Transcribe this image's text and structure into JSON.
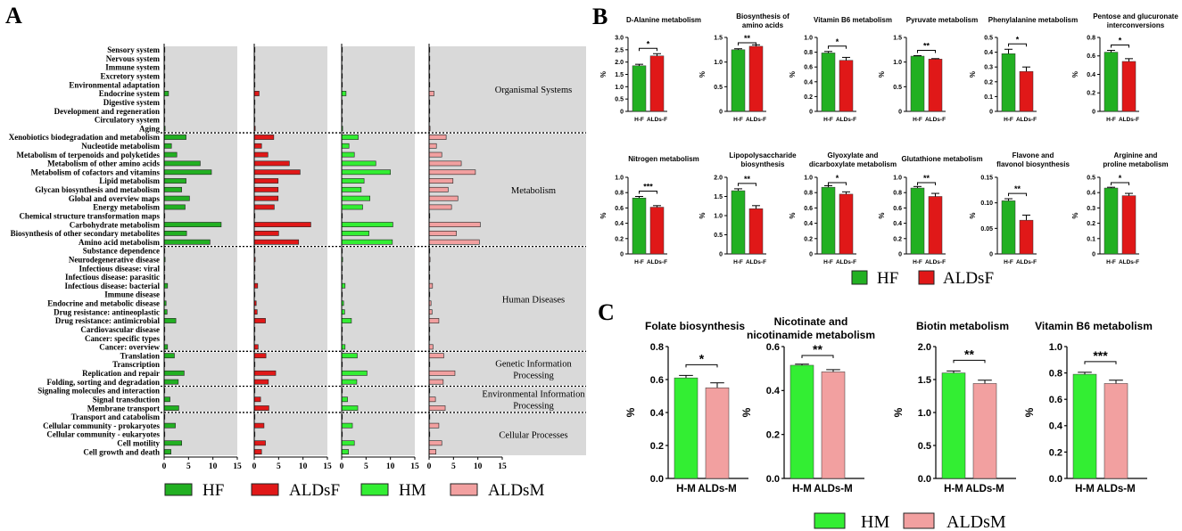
{
  "colors": {
    "HF": "#22b022",
    "ALDsF": "#e01818",
    "HM": "#33ee33",
    "ALDsM": "#f2a0a0",
    "panel_bg": "#d9d9d9",
    "axis": "#000000"
  },
  "panel_labels": {
    "A": "A",
    "B": "B",
    "C": "C"
  },
  "chart_data": [
    {
      "id": "A",
      "type": "bar",
      "orientation": "horizontal",
      "xlim": [
        0,
        15
      ],
      "xticks": [
        "0",
        "5",
        "10",
        "15"
      ],
      "categories": [
        "Sensory system",
        "Nervous system",
        "Immune system",
        "Excretory system",
        "Environmental adaptation",
        "Endocrine system",
        "Digestive system",
        "Development and regeneration",
        "Circulatory system",
        "Aging",
        "Xenobiotics biodegradation and metabolism",
        "Nucleotide metabolism",
        "Metabolism of terpenoids and polyketides",
        "Metabolism of other amino acids",
        "Metabolism of cofactors and vitamins",
        "Lipid metabolism",
        "Glycan biosynthesis and metabolism",
        "Global and overview maps",
        "Energy metabolism",
        "Chemical structure transformation maps",
        "Carbohydrate metabolism",
        "Biosynthesis of other secondary metabolites",
        "Amino acid metabolism",
        "Substance dependence",
        "Neurodegenerative disease",
        "Infectious disease: viral",
        "Infectious disease: parasitic",
        "Infectious disease: bacterial",
        "Immune disease",
        "Endocrine and metabolic disease",
        "Drug resistance: antineoplastic",
        "Drug resistance: antimicrobial",
        "Cardiovascular disease",
        "Cancer: specific types",
        "Cancer: overview",
        "Translation",
        "Transcription",
        "Replication and repair",
        "Folding, sorting and degradation",
        "Signaling molecules and interaction",
        "Signal transduction",
        "Membrane transport",
        "Transport and catabolism",
        "Cellular community - prokaryotes",
        "Cellular community - eukaryotes",
        "Cell motility",
        "Cell growth and death"
      ],
      "groups": [
        {
          "name": "Organismal Systems",
          "start": 0,
          "end": 9
        },
        {
          "name": "Metabolism",
          "start": 10,
          "end": 22
        },
        {
          "name": "Human Diseases",
          "start": 23,
          "end": 34
        },
        {
          "name": "Genetic Information Processing",
          "start": 35,
          "end": 38
        },
        {
          "name": "Environmental Information Processing",
          "start": 39,
          "end": 41
        },
        {
          "name": "Cellular Processes",
          "start": 42,
          "end": 46
        }
      ],
      "series": [
        {
          "name": "HF",
          "values": [
            0.1,
            0.1,
            0.1,
            0.1,
            0.05,
            0.9,
            0.1,
            0.1,
            0.1,
            0.2,
            4.5,
            1.5,
            2.6,
            7.4,
            9.7,
            4.5,
            3.6,
            5.2,
            4.3,
            0.1,
            11.7,
            4.6,
            9.4,
            0.1,
            0.2,
            0.1,
            0.1,
            0.7,
            0.1,
            0.4,
            0.6,
            2.4,
            0.1,
            0.1,
            0.7,
            2.1,
            0.1,
            4.1,
            2.9,
            0.1,
            1.2,
            3.0,
            0.1,
            2.3,
            0.1,
            3.6,
            1.4
          ]
        },
        {
          "name": "ALDsF",
          "values": [
            0.1,
            0.1,
            0.1,
            0.1,
            0.05,
            1.0,
            0.1,
            0.1,
            0.1,
            0.2,
            4.0,
            1.5,
            2.8,
            7.2,
            9.4,
            4.9,
            4.9,
            4.9,
            4.1,
            0.1,
            11.6,
            5.0,
            9.1,
            0.1,
            0.2,
            0.1,
            0.1,
            0.7,
            0.1,
            0.4,
            0.6,
            2.3,
            0.1,
            0.1,
            0.8,
            2.4,
            0.1,
            4.4,
            2.9,
            0.1,
            1.3,
            3.0,
            0.1,
            2.0,
            0.1,
            2.3,
            1.5
          ]
        },
        {
          "name": "HM",
          "values": [
            0.1,
            0.1,
            0.1,
            0.1,
            0.05,
            0.9,
            0.1,
            0.1,
            0.1,
            0.2,
            3.4,
            1.5,
            2.6,
            7.0,
            10.0,
            4.6,
            4.0,
            5.8,
            4.3,
            0.1,
            10.5,
            5.6,
            10.4,
            0.1,
            0.2,
            0.1,
            0.1,
            0.7,
            0.1,
            0.4,
            0.6,
            2.0,
            0.1,
            0.1,
            0.7,
            3.2,
            0.1,
            5.2,
            3.1,
            0.1,
            1.2,
            3.3,
            0.1,
            2.2,
            0.1,
            2.6,
            1.4
          ]
        },
        {
          "name": "ALDsM",
          "values": [
            0.1,
            0.1,
            0.1,
            0.1,
            0.05,
            1.0,
            0.1,
            0.1,
            0.1,
            0.2,
            3.5,
            1.5,
            2.6,
            6.6,
            9.5,
            4.9,
            3.9,
            5.9,
            4.6,
            0.1,
            10.5,
            5.6,
            10.3,
            0.1,
            0.2,
            0.1,
            0.1,
            0.7,
            0.1,
            0.4,
            0.6,
            2.0,
            0.1,
            0.1,
            0.8,
            3.0,
            0.1,
            5.3,
            2.9,
            0.1,
            1.3,
            3.3,
            0.1,
            2.0,
            0.1,
            2.6,
            1.4
          ]
        }
      ],
      "legend": [
        "HF",
        "ALDsF",
        "HM",
        "ALDsM"
      ]
    },
    {
      "id": "B",
      "type": "bar",
      "ylabel": "%",
      "categories": [
        "H-F",
        "ALDs-F"
      ],
      "legend": [
        "HF",
        "ALDsF"
      ],
      "subplots": [
        {
          "title": [
            "D-Alanine metabolism"
          ],
          "ylim": [
            0,
            3.0
          ],
          "yticks": [
            "0",
            "0.5",
            "1.0",
            "1.5",
            "2.0",
            "2.5",
            "3.0"
          ],
          "values": [
            1.85,
            2.25
          ],
          "errors": [
            0.06,
            0.09
          ],
          "sig": "*"
        },
        {
          "title": [
            "Biosynthesis of",
            "amino acids"
          ],
          "ylim": [
            0,
            1.5
          ],
          "yticks": [
            "0",
            "0.5",
            "1.0",
            "1.5"
          ],
          "values": [
            1.25,
            1.32
          ],
          "errors": [
            0.02,
            0.03
          ],
          "sig": "**"
        },
        {
          "title": [
            "Vitamin B6 metabolism"
          ],
          "ylim": [
            0,
            1.0
          ],
          "yticks": [
            "0",
            "0.2",
            "0.4",
            "0.6",
            "0.8",
            "1.0"
          ],
          "values": [
            0.79,
            0.69
          ],
          "errors": [
            0.02,
            0.04
          ],
          "sig": "*"
        },
        {
          "title": [
            "Pyruvate metabolism"
          ],
          "ylim": [
            0,
            1.5
          ],
          "yticks": [
            "0",
            "0.5",
            "1.0",
            "1.5"
          ],
          "values": [
            1.12,
            1.06
          ],
          "errors": [
            0.01,
            0.01
          ],
          "sig": "**"
        },
        {
          "title": [
            "Phenylalanine metabolism"
          ],
          "ylim": [
            0,
            0.5
          ],
          "yticks": [
            "0",
            "0.1",
            "0.2",
            "0.3",
            "0.4",
            "0.5"
          ],
          "values": [
            0.39,
            0.27
          ],
          "errors": [
            0.03,
            0.03
          ],
          "sig": "*"
        },
        {
          "title": [
            "Pentose and glucuronate",
            "interconversions"
          ],
          "ylim": [
            0,
            0.8
          ],
          "yticks": [
            "0",
            "0.2",
            "0.4",
            "0.6",
            "0.8"
          ],
          "values": [
            0.64,
            0.54
          ],
          "errors": [
            0.02,
            0.03
          ],
          "sig": "*"
        },
        {
          "title": [
            "Nitrogen metabolism"
          ],
          "ylim": [
            0,
            1.0
          ],
          "yticks": [
            "0",
            "0.2",
            "0.4",
            "0.6",
            "0.8",
            "1.0"
          ],
          "values": [
            0.73,
            0.61
          ],
          "errors": [
            0.02,
            0.02
          ],
          "sig": "***"
        },
        {
          "title": [
            "Lipopolysaccharide",
            "biosynthesis"
          ],
          "ylim": [
            0,
            2.0
          ],
          "yticks": [
            "0",
            "0.5",
            "1.0",
            "1.5",
            "2.0"
          ],
          "values": [
            1.65,
            1.18
          ],
          "errors": [
            0.05,
            0.08
          ],
          "sig": "**"
        },
        {
          "title": [
            "Glyoxylate and",
            "dicarboxylate metabolism"
          ],
          "ylim": [
            0,
            1.0
          ],
          "yticks": [
            "0",
            "0.2",
            "0.4",
            "0.6",
            "0.8",
            "1.0"
          ],
          "values": [
            0.87,
            0.78
          ],
          "errors": [
            0.02,
            0.03
          ],
          "sig": "*"
        },
        {
          "title": [
            "Glutathione metabolism"
          ],
          "ylim": [
            0,
            1.0
          ],
          "yticks": [
            "0",
            "0.2",
            "0.4",
            "0.6",
            "0.8",
            "1.0"
          ],
          "values": [
            0.86,
            0.75
          ],
          "errors": [
            0.02,
            0.04
          ],
          "sig": "**"
        },
        {
          "title": [
            "Flavone and",
            "flavonol biosynthesis"
          ],
          "ylim": [
            0,
            0.15
          ],
          "yticks": [
            "0",
            "0.05",
            "0.10",
            "0.15"
          ],
          "values": [
            0.104,
            0.066
          ],
          "errors": [
            0.004,
            0.01
          ],
          "sig": "**"
        },
        {
          "title": [
            "Arginine and",
            "proline metabolism"
          ],
          "ylim": [
            0,
            0.5
          ],
          "yticks": [
            "0",
            "0.1",
            "0.2",
            "0.3",
            "0.4",
            "0.5"
          ],
          "values": [
            0.43,
            0.38
          ],
          "errors": [
            0.005,
            0.015
          ],
          "sig": "*"
        }
      ]
    },
    {
      "id": "C",
      "type": "bar",
      "ylabel": "%",
      "categories": [
        "H-M",
        "ALDs-M"
      ],
      "legend": [
        "HM",
        "ALDsM"
      ],
      "subplots": [
        {
          "title": [
            "Folate biosynthesis"
          ],
          "ylim": [
            0,
            0.8
          ],
          "yticks": [
            "0.0",
            "0.2",
            "0.4",
            "0.6",
            "0.8"
          ],
          "values": [
            0.61,
            0.55
          ],
          "errors": [
            0.015,
            0.03
          ],
          "sig": "*"
        },
        {
          "title": [
            "Nicotinate and",
            "nicotinamide metabolism"
          ],
          "ylim": [
            0,
            0.6
          ],
          "yticks": [
            "0.0",
            "0.2",
            "0.4",
            "0.6"
          ],
          "values": [
            0.515,
            0.485
          ],
          "errors": [
            0.005,
            0.01
          ],
          "sig": "**"
        },
        {
          "title": [
            "Biotin metabolism"
          ],
          "ylim": [
            0,
            2.0
          ],
          "yticks": [
            "0.0",
            "0.5",
            "1.0",
            "1.5",
            "2.0"
          ],
          "values": [
            1.6,
            1.44
          ],
          "errors": [
            0.03,
            0.05
          ],
          "sig": "**"
        },
        {
          "title": [
            "Vitamin B6 metabolism"
          ],
          "ylim": [
            0,
            1.0
          ],
          "yticks": [
            "0.0",
            "0.2",
            "0.4",
            "0.6",
            "0.8",
            "1.0"
          ],
          "values": [
            0.79,
            0.72
          ],
          "errors": [
            0.015,
            0.025
          ],
          "sig": "***"
        }
      ]
    }
  ]
}
